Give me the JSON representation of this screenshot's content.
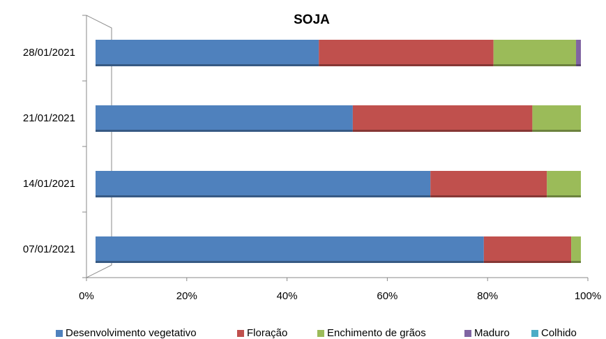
{
  "chart_data": {
    "type": "stacked_bar_horizontal",
    "title": "SOJA",
    "categories": [
      "28/01/2021",
      "21/01/2021",
      "14/01/2021",
      "07/01/2021"
    ],
    "series": [
      {
        "name": "Desenvolvimento vegetativo",
        "color": "#4f81bd",
        "values": [
          46,
          53,
          69,
          80
        ]
      },
      {
        "name": "Floração",
        "color": "#c0504d",
        "values": [
          36,
          37,
          24,
          18
        ]
      },
      {
        "name": "Enchimento de grãos",
        "color": "#9bbb59",
        "values": [
          17,
          10,
          7,
          2
        ]
      },
      {
        "name": "Maduro",
        "color": "#8064a2",
        "values": [
          1,
          0,
          0,
          0
        ]
      },
      {
        "name": "Colhido",
        "color": "#4bacc6",
        "values": [
          0,
          0,
          0,
          0
        ]
      }
    ],
    "xlim": [
      0,
      100
    ],
    "xticks": [
      {
        "value": 0,
        "label": "0%"
      },
      {
        "value": 20,
        "label": "20%"
      },
      {
        "value": 40,
        "label": "40%"
      },
      {
        "value": 60,
        "label": "60%"
      },
      {
        "value": 80,
        "label": "80%"
      },
      {
        "value": 100,
        "label": "100%"
      }
    ],
    "legend": "bottom"
  }
}
